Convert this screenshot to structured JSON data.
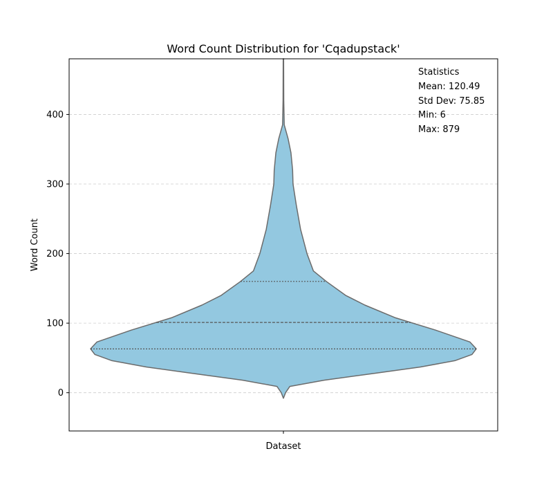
{
  "chart_data": {
    "type": "violin",
    "title": "Word Count Distribution for 'Cqadupstack'",
    "xlabel": "",
    "ylabel": "Word Count",
    "categories": [
      "Dataset"
    ],
    "ylim": [
      -55,
      480
    ],
    "yticks": [
      0,
      100,
      200,
      300,
      400
    ],
    "grid": "y-dashed",
    "fill_color": "#93c8e0",
    "edge_color": "#6b6b6b",
    "quartiles": [
      63,
      101,
      160
    ],
    "density_profile": [
      {
        "y": -8,
        "w": 0.0
      },
      {
        "y": 0,
        "w": 0.01
      },
      {
        "y": 9,
        "w": 0.03
      },
      {
        "y": 18,
        "w": 0.19
      },
      {
        "y": 28,
        "w": 0.43
      },
      {
        "y": 37,
        "w": 0.64
      },
      {
        "y": 46,
        "w": 0.8
      },
      {
        "y": 55,
        "w": 0.88
      },
      {
        "y": 63,
        "w": 0.9
      },
      {
        "y": 73,
        "w": 0.87
      },
      {
        "y": 90,
        "w": 0.71
      },
      {
        "y": 108,
        "w": 0.52
      },
      {
        "y": 126,
        "w": 0.38
      },
      {
        "y": 140,
        "w": 0.29
      },
      {
        "y": 160,
        "w": 0.2
      },
      {
        "y": 175,
        "w": 0.14
      },
      {
        "y": 200,
        "w": 0.11
      },
      {
        "y": 235,
        "w": 0.08
      },
      {
        "y": 270,
        "w": 0.06
      },
      {
        "y": 300,
        "w": 0.045
      },
      {
        "y": 320,
        "w": 0.043
      },
      {
        "y": 345,
        "w": 0.035
      },
      {
        "y": 365,
        "w": 0.022
      },
      {
        "y": 385,
        "w": 0.004
      },
      {
        "y": 420,
        "w": 0.0015
      },
      {
        "y": 480,
        "w": 0.001
      }
    ]
  },
  "statistics": {
    "heading": "Statistics",
    "mean": "Mean: 120.49",
    "std": "Std Dev: 75.85",
    "min": "Min: 6",
    "max": "Max: 879"
  }
}
